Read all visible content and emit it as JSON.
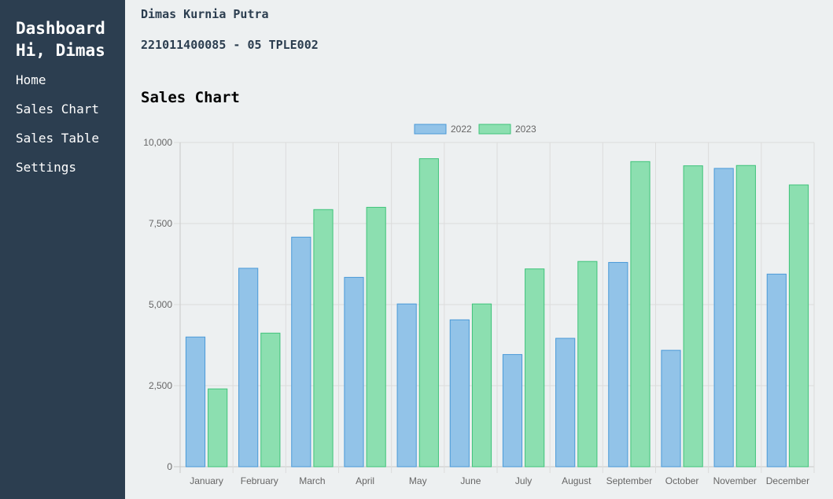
{
  "sidebar": {
    "title_line1": "Dashboard",
    "title_line2": "Hi, Dimas",
    "items": [
      {
        "label": "Home"
      },
      {
        "label": "Sales Chart"
      },
      {
        "label": "Sales Table"
      },
      {
        "label": "Settings"
      }
    ]
  },
  "main": {
    "name": "Dimas Kurnia Putra",
    "nim_class": "221011400085 - 05 TPLE002",
    "heading": "Sales Chart"
  },
  "colors": {
    "sidebar_bg": "#2c3e50",
    "page_bg": "#edf0f1",
    "series_2022_fill": "#92c3e8",
    "series_2022_border": "#4a9ad8",
    "series_2023_fill": "#8cdfb0",
    "series_2023_border": "#3fc37a"
  },
  "chart_data": {
    "type": "bar",
    "categories": [
      "January",
      "February",
      "March",
      "April",
      "May",
      "June",
      "July",
      "August",
      "September",
      "October",
      "November",
      "December"
    ],
    "series": [
      {
        "name": "2022",
        "values": [
          4000,
          6120,
          7080,
          5840,
          5020,
          4530,
          3460,
          3960,
          6300,
          3590,
          9200,
          5940
        ]
      },
      {
        "name": "2023",
        "values": [
          2400,
          4120,
          7930,
          8000,
          9500,
          5020,
          6100,
          6330,
          9410,
          9280,
          9290,
          8690
        ]
      }
    ],
    "ylim": [
      0,
      10000
    ],
    "yticks": [
      "0",
      "2,500",
      "5,000",
      "7,500",
      "10,000"
    ],
    "grid": true,
    "legend": "top-center"
  }
}
